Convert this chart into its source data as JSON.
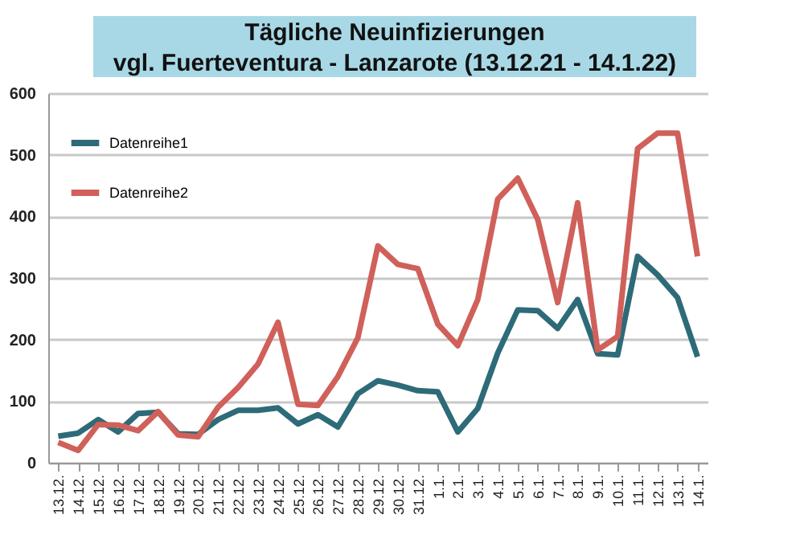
{
  "chart_data": {
    "type": "line",
    "title": "Tägliche Neuinfizierungen\nvgl. Fuerteventura - Lanzarote (13.12.21 - 14.1.22)",
    "categories": [
      "13.12.",
      "14.12.",
      "15.12.",
      "16.12.",
      "17.12.",
      "18.12.",
      "19.12.",
      "20.12.",
      "21.12.",
      "22.12.",
      "23.12.",
      "24.12.",
      "25.12.",
      "26.12.",
      "27.12.",
      "28.12.",
      "29.12.",
      "30.12.",
      "31.12.",
      "1.1.",
      "2.1.",
      "3.1.",
      "4.1.",
      "5.1.",
      "6.1.",
      "7.1.",
      "8.1.",
      "9.1.",
      "10.1.",
      "11.1.",
      "12.1.",
      "13.1.",
      "14.1."
    ],
    "series": [
      {
        "name": "Datenreihe1",
        "color": "#2e6b78",
        "values": [
          43,
          48,
          70,
          50,
          80,
          82,
          47,
          46,
          70,
          85,
          85,
          89,
          63,
          78,
          58,
          112,
          133,
          126,
          117,
          115,
          50,
          88,
          178,
          248,
          247,
          218,
          265,
          177,
          175,
          335,
          305,
          268,
          172
        ]
      },
      {
        "name": "Datenreihe2",
        "color": "#d0605a",
        "values": [
          33,
          20,
          62,
          61,
          52,
          83,
          45,
          42,
          90,
          122,
          160,
          228,
          95,
          93,
          140,
          203,
          352,
          322,
          315,
          225,
          190,
          265,
          428,
          462,
          395,
          260,
          422,
          183,
          205,
          510,
          535,
          535,
          335
        ]
      }
    ],
    "ylim": [
      0,
      600
    ],
    "yticks": [
      0,
      100,
      200,
      300,
      400,
      500,
      600
    ],
    "grid": "y",
    "legend": "top left",
    "marker": "none",
    "line_style": "solid"
  }
}
